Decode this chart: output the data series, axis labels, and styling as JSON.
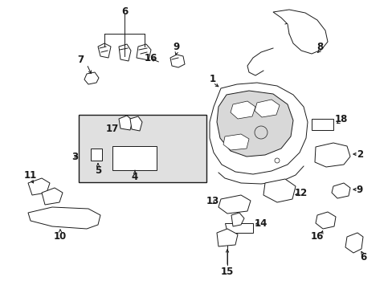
{
  "bg_color": "#ffffff",
  "line_color": "#1a1a1a",
  "box_fill": "#e0e0e0",
  "figsize": [
    4.89,
    3.6
  ],
  "dpi": 100,
  "label_fs": 8.5,
  "lw": 0.7
}
